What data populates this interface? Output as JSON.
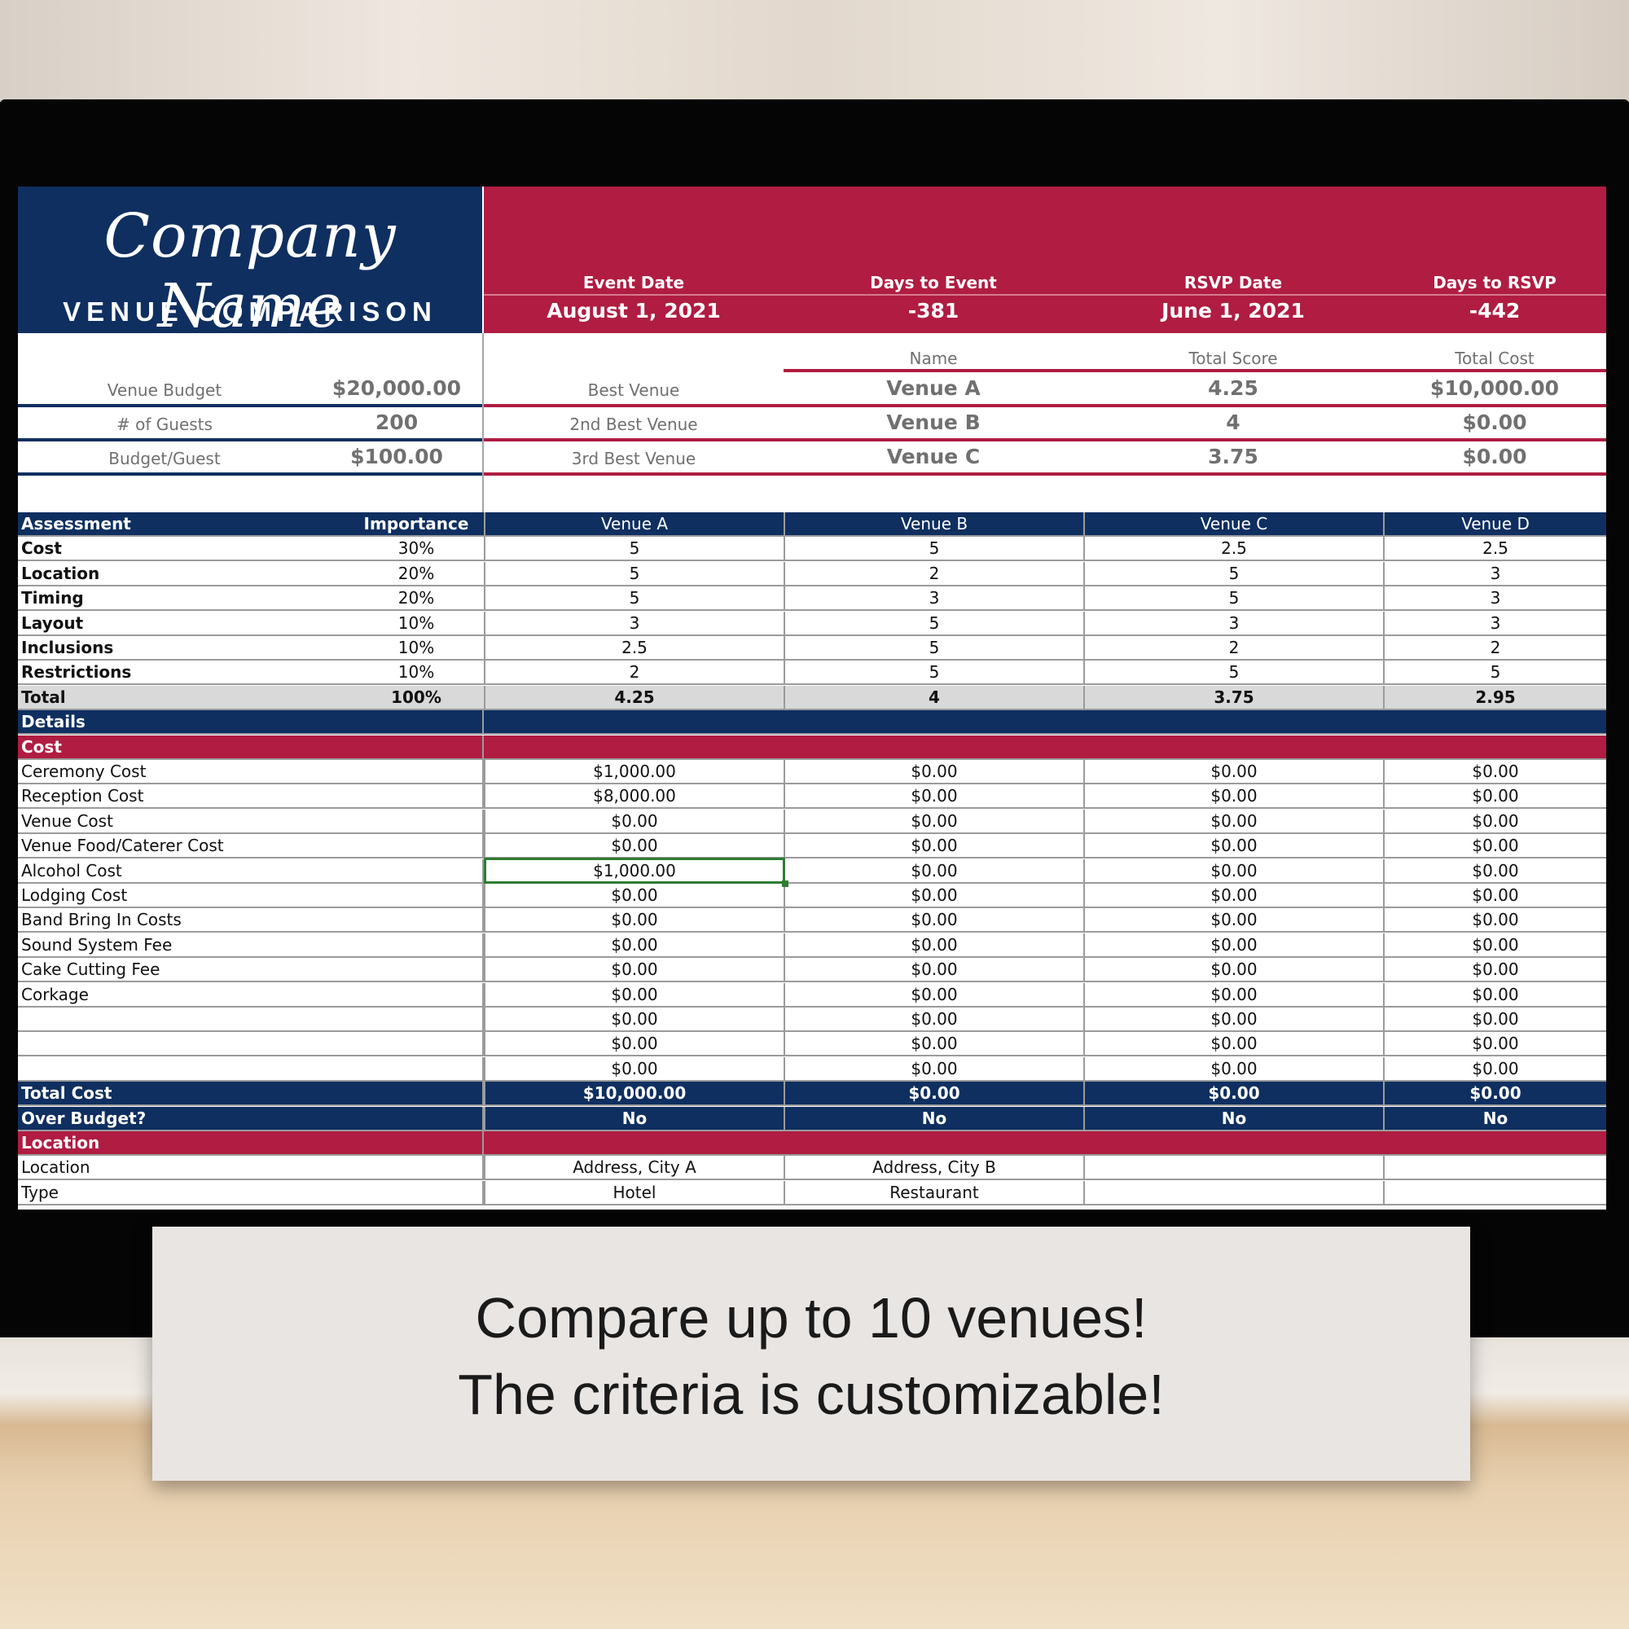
{
  "brand": {
    "company_name": "Company Name",
    "title": "VENUE COMPARISON",
    "navy": "#0f2f60",
    "crimson": "#b01c42"
  },
  "header": {
    "event_date_label": "Event Date",
    "event_date": "August 1, 2021",
    "days_to_event_label": "Days to Event",
    "days_to_event": "-381",
    "rsvp_date_label": "RSVP Date",
    "rsvp_date": "June 1, 2021",
    "days_to_rsvp_label": "Days to RSVP",
    "days_to_rsvp": "-442"
  },
  "budget": {
    "venue_budget_label": "Venue Budget",
    "venue_budget": "$20,000.00",
    "guests_label": "# of Guests",
    "guests": "200",
    "per_guest_label": "Budget/Guest",
    "per_guest": "$100.00"
  },
  "ranking": {
    "name_label": "Name",
    "score_label": "Total Score",
    "cost_label": "Total Cost",
    "rows": [
      {
        "label": "Best Venue",
        "name": "Venue A",
        "score": "4.25",
        "cost": "$10,000.00"
      },
      {
        "label": "2nd Best Venue",
        "name": "Venue B",
        "score": "4",
        "cost": "$0.00"
      },
      {
        "label": "3rd Best Venue",
        "name": "Venue C",
        "score": "3.75",
        "cost": "$0.00"
      }
    ]
  },
  "assessment": {
    "header": [
      "Assessment",
      "Importance",
      "Venue A",
      "Venue B",
      "Venue C",
      "Venue D"
    ],
    "rows": [
      [
        "Cost",
        "30%",
        "5",
        "5",
        "2.5",
        "2.5"
      ],
      [
        "Location",
        "20%",
        "5",
        "2",
        "5",
        "3"
      ],
      [
        "Timing",
        "20%",
        "5",
        "3",
        "5",
        "3"
      ],
      [
        "Layout",
        "10%",
        "3",
        "5",
        "3",
        "3"
      ],
      [
        "Inclusions",
        "10%",
        "2.5",
        "5",
        "2",
        "2"
      ],
      [
        "Restrictions",
        "10%",
        "2",
        "5",
        "5",
        "5"
      ]
    ],
    "total": [
      "Total",
      "100%",
      "4.25",
      "4",
      "3.75",
      "2.95"
    ]
  },
  "details": {
    "label": "Details",
    "cost_section": "Cost",
    "cost_rows": [
      [
        "Ceremony Cost",
        "$1,000.00",
        "$0.00",
        "$0.00",
        "$0.00"
      ],
      [
        "Reception Cost",
        "$8,000.00",
        "$0.00",
        "$0.00",
        "$0.00"
      ],
      [
        "Venue Cost",
        "$0.00",
        "$0.00",
        "$0.00",
        "$0.00"
      ],
      [
        "Venue Food/Caterer Cost",
        "$0.00",
        "$0.00",
        "$0.00",
        "$0.00"
      ],
      [
        "Alcohol Cost",
        "$1,000.00",
        "$0.00",
        "$0.00",
        "$0.00"
      ],
      [
        "Lodging Cost",
        "$0.00",
        "$0.00",
        "$0.00",
        "$0.00"
      ],
      [
        "Band Bring In Costs",
        "$0.00",
        "$0.00",
        "$0.00",
        "$0.00"
      ],
      [
        "Sound System Fee",
        "$0.00",
        "$0.00",
        "$0.00",
        "$0.00"
      ],
      [
        "Cake Cutting Fee",
        "$0.00",
        "$0.00",
        "$0.00",
        "$0.00"
      ],
      [
        "Corkage",
        "$0.00",
        "$0.00",
        "$0.00",
        "$0.00"
      ],
      [
        "",
        "$0.00",
        "$0.00",
        "$0.00",
        "$0.00"
      ],
      [
        "",
        "$0.00",
        "$0.00",
        "$0.00",
        "$0.00"
      ],
      [
        "",
        "$0.00",
        "$0.00",
        "$0.00",
        "$0.00"
      ]
    ],
    "total_cost": [
      "Total Cost",
      "$10,000.00",
      "$0.00",
      "$0.00",
      "$0.00"
    ],
    "over_budget": [
      "Over Budget?",
      "No",
      "No",
      "No",
      "No"
    ],
    "location_section": "Location",
    "location_rows": [
      [
        "Location",
        "Address, City A",
        "Address, City B",
        "",
        ""
      ],
      [
        "Type",
        "Hotel",
        "Restaurant",
        "",
        ""
      ]
    ]
  },
  "caption": {
    "line1": "Compare up to 10 venues!",
    "line2": "The criteria is customizable!"
  }
}
